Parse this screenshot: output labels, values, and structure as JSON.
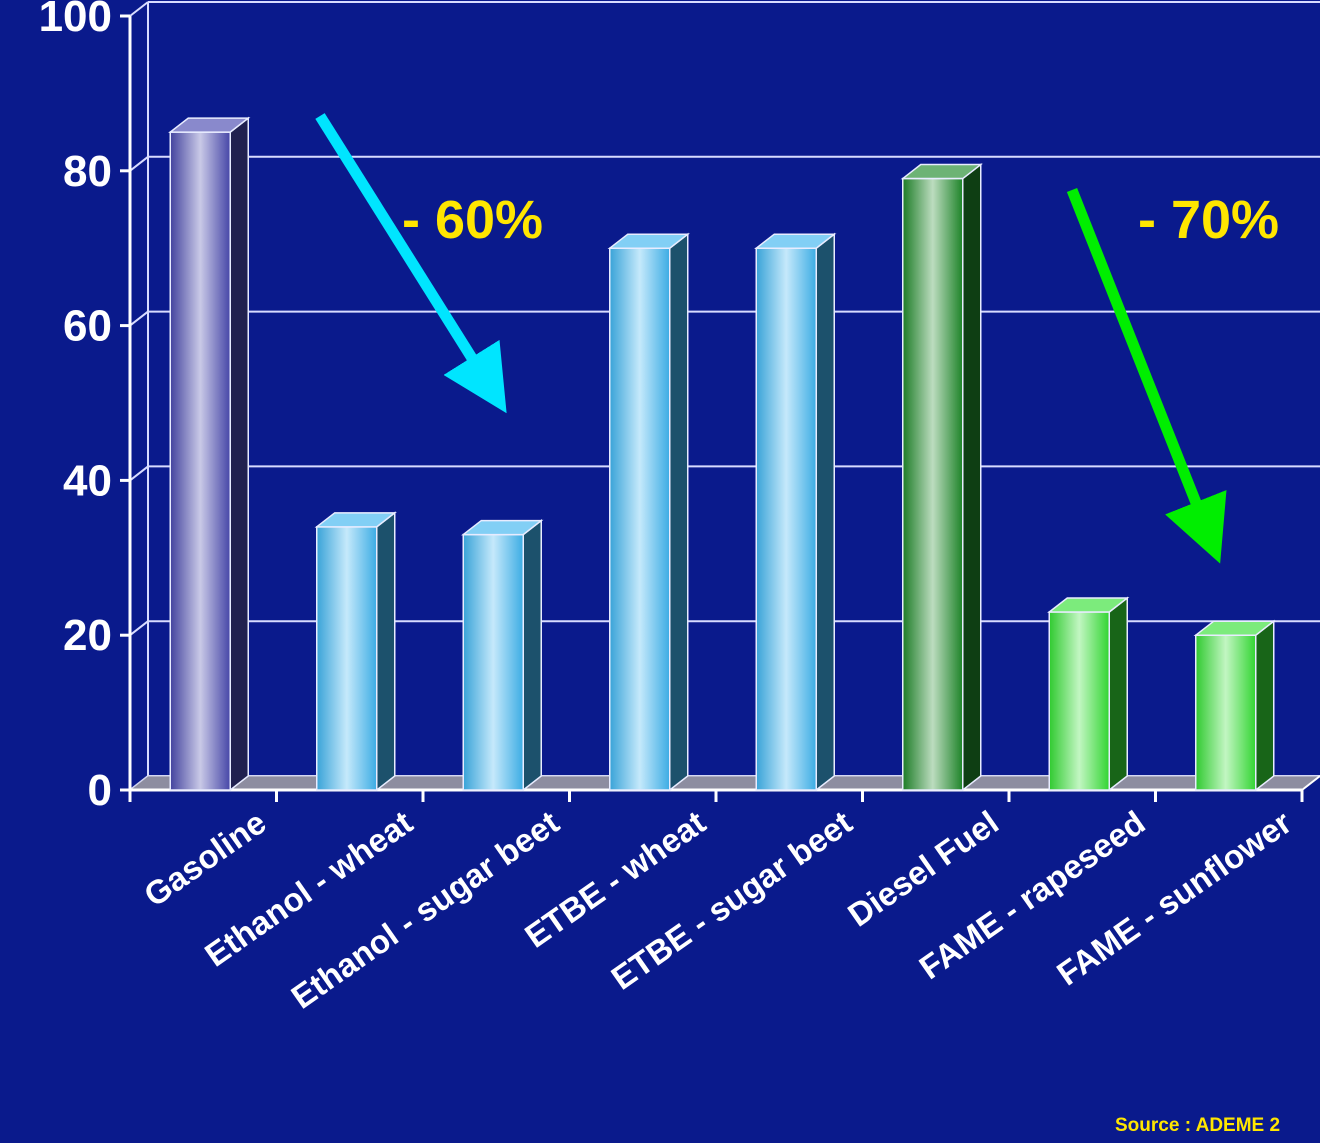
{
  "chart_data": {
    "type": "bar",
    "title": "",
    "xlabel": "",
    "ylabel": "",
    "ylim": [
      0,
      100
    ],
    "yticks": [
      0,
      20,
      40,
      60,
      80,
      100
    ],
    "grid": true,
    "categories": [
      "Gasoline",
      "Ethanol - wheat",
      "Ethanol - sugar beet",
      "ETBE - wheat",
      "ETBE - sugar beet",
      "Diesel Fuel",
      "FAME - rapeseed",
      "FAME - sunflower"
    ],
    "values": [
      85,
      34,
      33,
      70,
      70,
      79,
      23,
      20
    ],
    "colors": [
      "#4a4ab0",
      "#3fb5f0",
      "#3fb5f0",
      "#3fb5f0",
      "#3fb5f0",
      "#1f8a2a",
      "#35e035",
      "#35e035"
    ],
    "annotations": [
      {
        "text": "- 60%",
        "color": "#ffe600",
        "arrow_color": "#00e5ff"
      },
      {
        "text": "- 70%",
        "color": "#ffe600",
        "arrow_color": "#00ee00"
      }
    ],
    "source": "Source : ADEME 2"
  }
}
